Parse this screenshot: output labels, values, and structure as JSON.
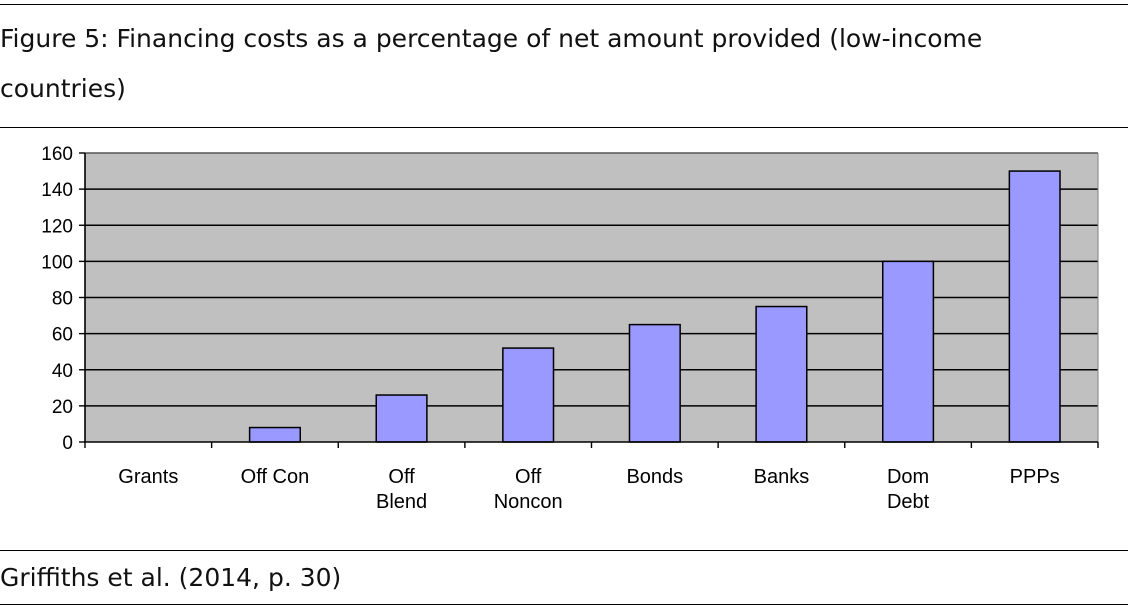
{
  "figure": {
    "caption": "Figure 5: Financing costs as a percentage of net amount provided (low-income countries)",
    "source": "Griffiths et al. (2014, p. 30)"
  },
  "chart_data": {
    "type": "bar",
    "categories": [
      "Grants",
      "Off Con",
      "Off Blend",
      "Off Noncon",
      "Bonds",
      "Banks",
      "Dom Debt",
      "PPPs"
    ],
    "category_lines": [
      [
        "Grants"
      ],
      [
        "Off Con"
      ],
      [
        "Off",
        "Blend"
      ],
      [
        "Off",
        "Noncon"
      ],
      [
        "Bonds"
      ],
      [
        "Banks"
      ],
      [
        "Dom",
        "Debt"
      ],
      [
        "PPPs"
      ]
    ],
    "values": [
      0,
      8,
      26,
      52,
      65,
      75,
      100,
      150
    ],
    "ylim": [
      0,
      160
    ],
    "yticks": [
      0,
      20,
      40,
      60,
      80,
      100,
      120,
      140,
      160
    ],
    "xlabel": "",
    "ylabel": "",
    "grid": true,
    "legend": "none",
    "colors": {
      "bar": "#9999ff",
      "plot_bg": "#c0c0c0",
      "bar_edge": "#000000"
    }
  }
}
